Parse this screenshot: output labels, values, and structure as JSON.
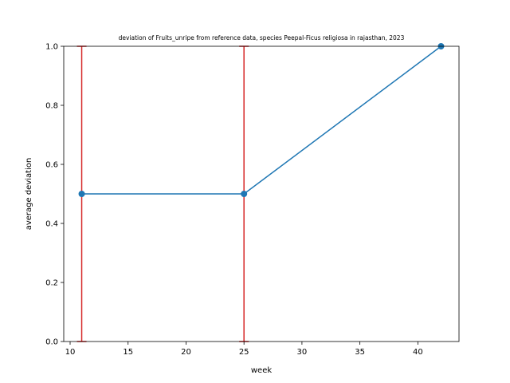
{
  "chart_data": {
    "type": "line",
    "title": "deviation of Fruits_unripe from reference data, species Peepal-Ficus religiosa in rajasthan, 2023",
    "xlabel": "week",
    "ylabel": "average deviation",
    "xlim": [
      9.45,
      43.55
    ],
    "ylim": [
      0.0,
      1.0
    ],
    "xticks": [
      10,
      15,
      20,
      25,
      30,
      35,
      40
    ],
    "yticks": [
      0.0,
      0.2,
      0.4,
      0.6,
      0.8,
      1.0
    ],
    "xtick_labels": [
      "10",
      "15",
      "20",
      "25",
      "30",
      "35",
      "40"
    ],
    "ytick_labels": [
      "0.0",
      "0.2",
      "0.4",
      "0.6",
      "0.8",
      "1.0"
    ],
    "grid": false,
    "series": [
      {
        "x": [
          11,
          25,
          42
        ],
        "y": [
          0.5,
          0.5,
          1.0
        ],
        "color": "#1f77b4",
        "marker": "circle",
        "error_bars": [
          {
            "x": 11,
            "low": 0.0,
            "high": 1.0
          },
          {
            "x": 25,
            "low": 0.0,
            "high": 1.0
          }
        ],
        "error_color": "#d62728"
      }
    ]
  }
}
